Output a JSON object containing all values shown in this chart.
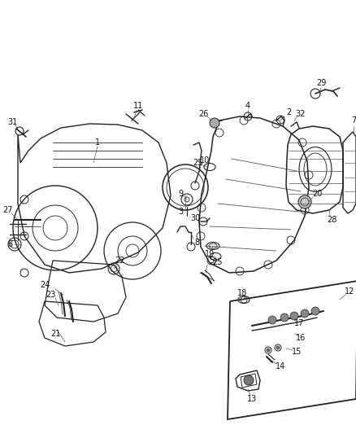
{
  "background_color": "#ffffff",
  "fig_width": 4.38,
  "fig_height": 5.33,
  "dpi": 100,
  "line_color": "#222222",
  "label_color": "#111111",
  "label_fontsize": 7.0
}
